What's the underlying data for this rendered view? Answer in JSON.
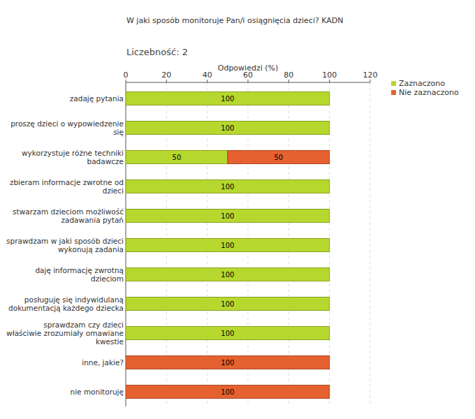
{
  "chart_data": {
    "type": "bar",
    "orientation": "horizontal",
    "stacked": true,
    "title": "W jaki sposób monitoruje Pan/i osiągnięcia dzieci?  KADN",
    "subtitle": "Liczebność: 2",
    "x_label": "Odpowiedzi (%)",
    "categories": [
      "zadaję pytania",
      "proszę dzieci o wypowiedzenie się",
      "wykorzystuje różne techniki badawcze",
      "zbieram informacje zwrotne od dzieci",
      "stwarzam dzieciom możliwość zadawania pytań",
      "sprawdzam w jaki sposób dzieci wykonują zadania",
      "daję informację zwrotną dzieciom",
      "posługuję się indywidulaną dokumentacją każdego dziecka",
      "sprawdzam czy dzieci właściwie zrozumiały omawiane kwestie",
      "inne, jakie?",
      "nie monitoruję"
    ],
    "series": [
      {
        "name": "Zaznaczono",
        "color": "#b6d82e",
        "values": [
          100,
          100,
          50,
          100,
          100,
          100,
          100,
          100,
          100,
          0,
          0
        ]
      },
      {
        "name": "Nie zaznaczono",
        "color": "#e5612f",
        "values": [
          0,
          0,
          50,
          0,
          0,
          0,
          0,
          0,
          0,
          100,
          100
        ]
      }
    ],
    "xlim": [
      0,
      120
    ],
    "xticks": [
      0,
      20,
      40,
      60,
      80,
      100,
      120
    ],
    "grid": true,
    "legend": "right",
    "data_labels": true
  }
}
